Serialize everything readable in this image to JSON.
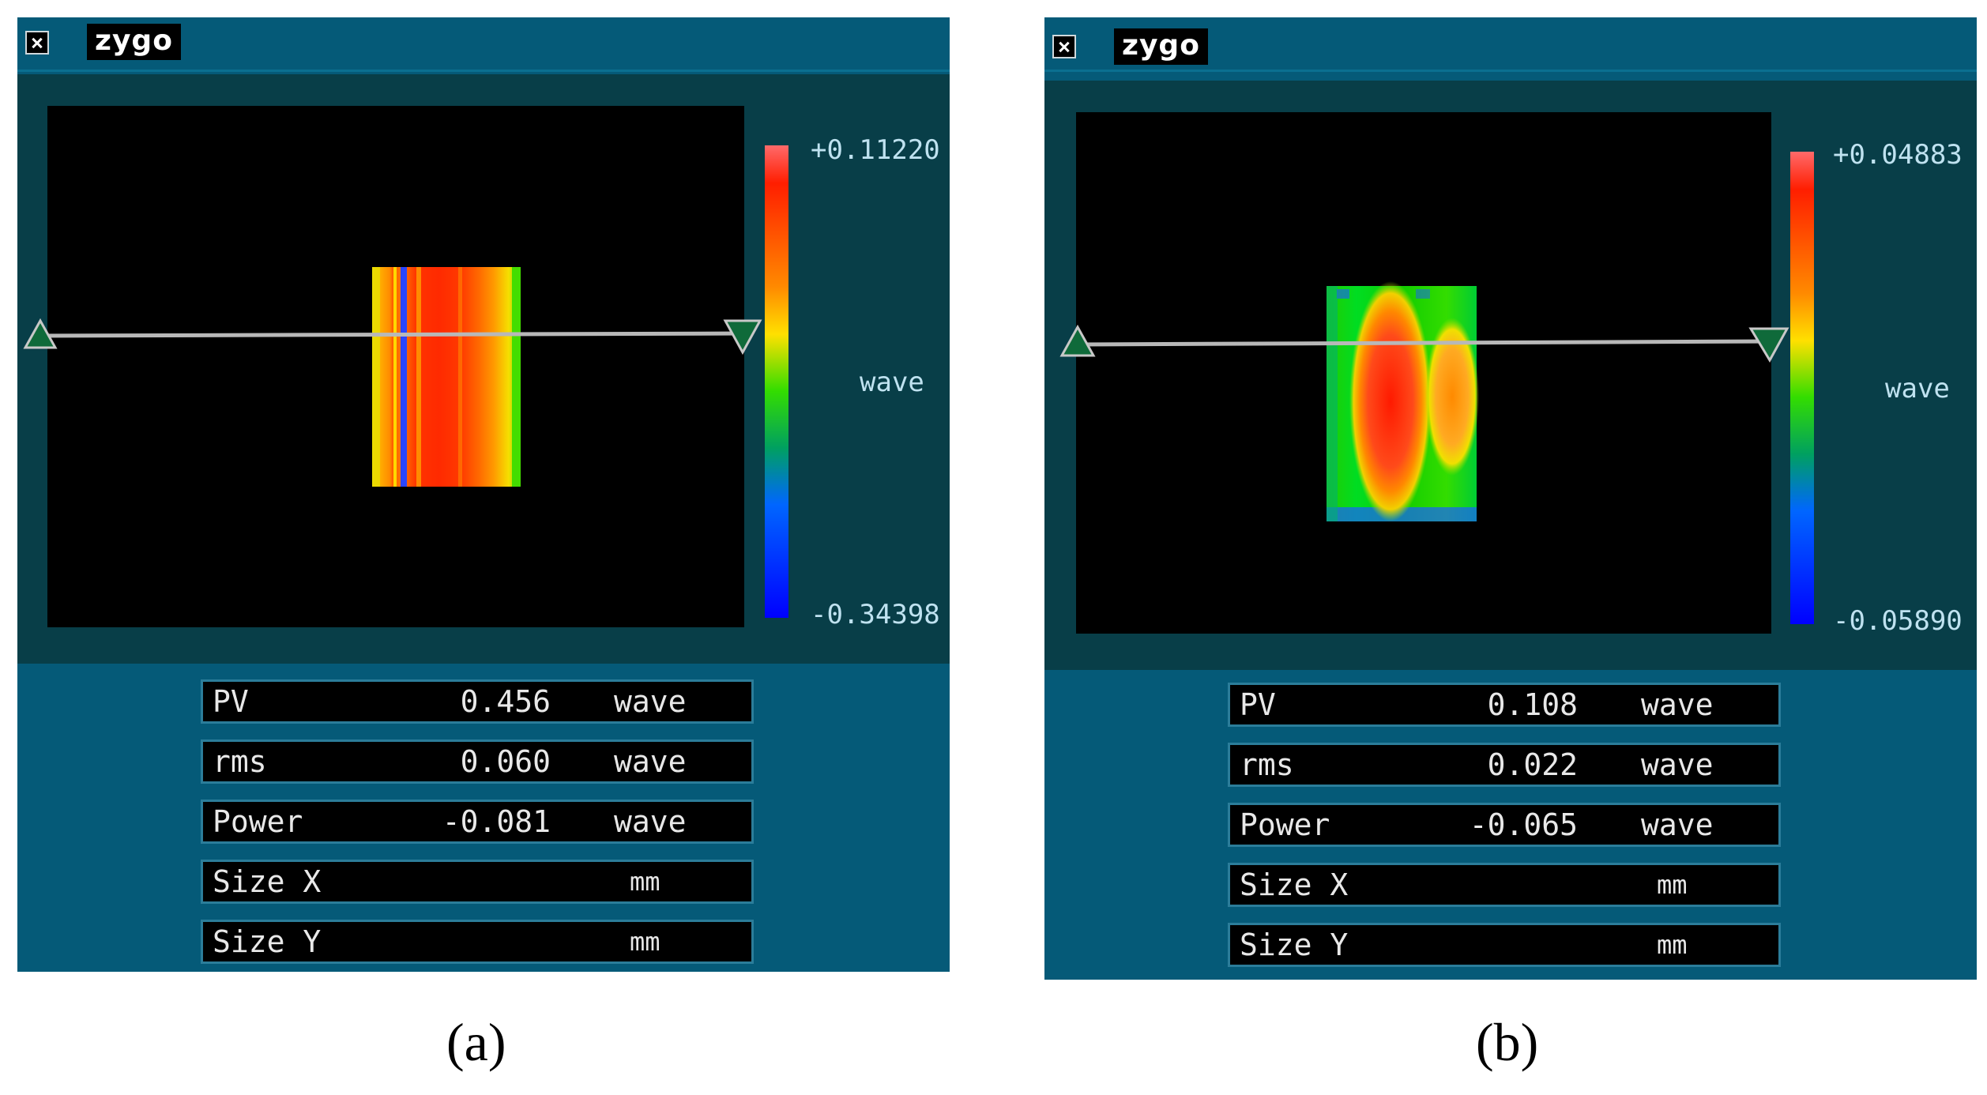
{
  "panels": [
    {
      "logo": "zygo",
      "colorbar": {
        "max_label": "+0.11220",
        "min_label": "-0.34398",
        "unit_label": "wave"
      },
      "stats": [
        {
          "name": "PV",
          "value": "0.456",
          "unit": "wave"
        },
        {
          "name": "rms",
          "value": "0.060",
          "unit": "wave"
        },
        {
          "name": "Power",
          "value": "-0.081",
          "unit": "wave"
        },
        {
          "name": "Size X",
          "value": "",
          "unit": "mm"
        },
        {
          "name": "Size Y",
          "value": "",
          "unit": "mm"
        }
      ],
      "caption": "(a)"
    },
    {
      "logo": "zygo",
      "colorbar": {
        "max_label": "+0.04883",
        "min_label": "-0.05890",
        "unit_label": "wave"
      },
      "stats": [
        {
          "name": "PV",
          "value": "0.108",
          "unit": "wave"
        },
        {
          "name": "rms",
          "value": "0.022",
          "unit": "wave"
        },
        {
          "name": "Power",
          "value": "-0.065",
          "unit": "wave"
        },
        {
          "name": "Size X",
          "value": "",
          "unit": "mm"
        },
        {
          "name": "Size Y",
          "value": "",
          "unit": "mm"
        }
      ],
      "caption": "(b)"
    }
  ],
  "colors": {
    "window": "#055a78",
    "plot_bg": "#083e48"
  }
}
